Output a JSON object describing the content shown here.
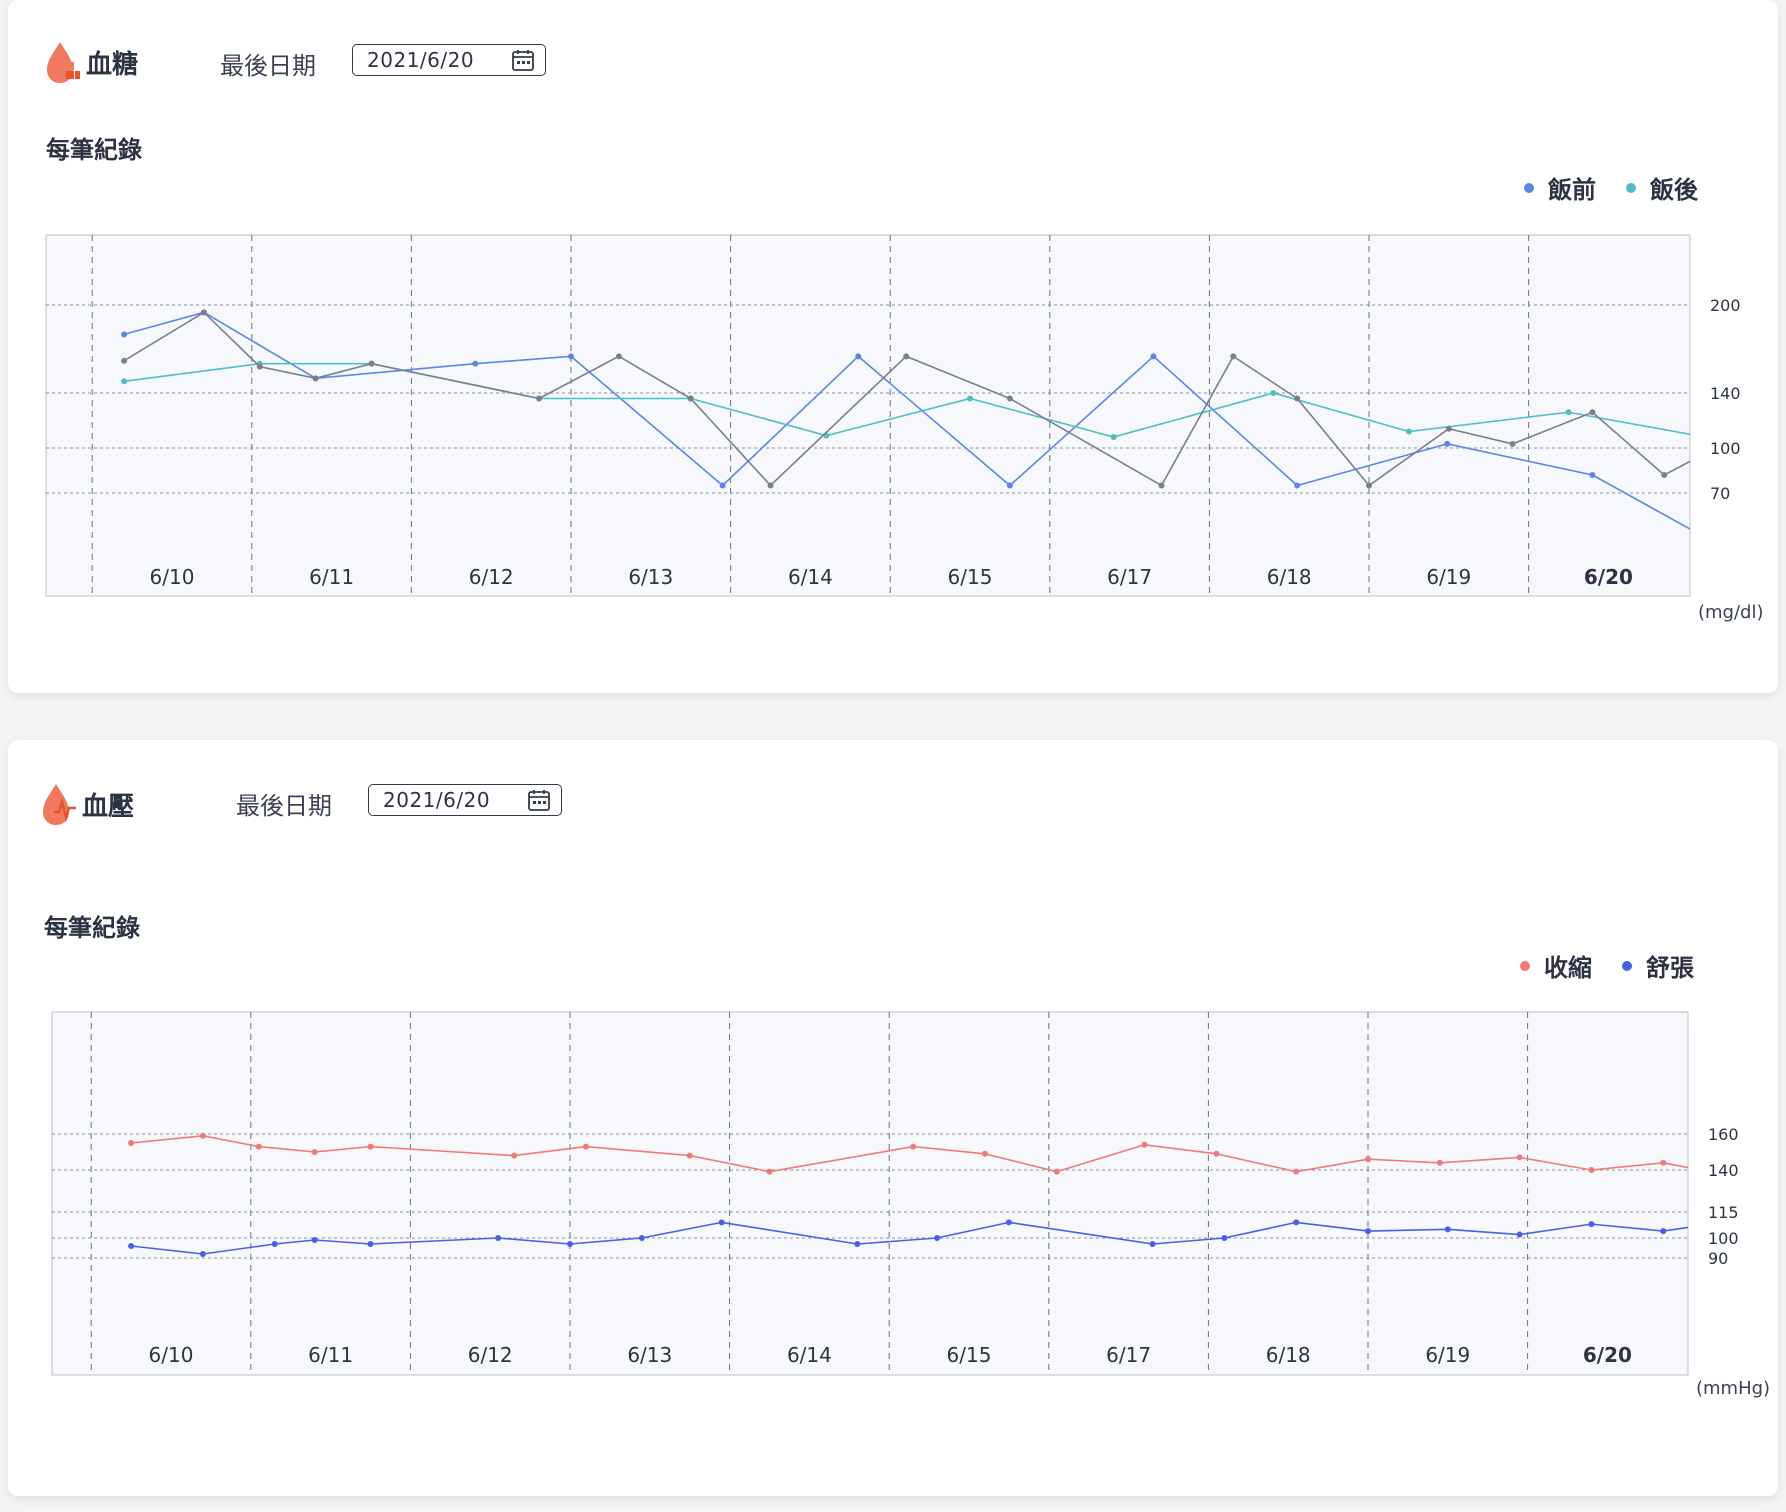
{
  "cards": {
    "blood_sugar": {
      "title": "血糖",
      "last_date_label": "最後日期",
      "last_date_value": "2021/6/20",
      "section_title": "每筆紀錄",
      "unit": "(mg/dl)",
      "legend": [
        {
          "label": "飯前",
          "color": "#5b86e5"
        },
        {
          "label": "飯後",
          "color": "#4fbfc6"
        }
      ],
      "icon": "drop-icon",
      "accent_color": "#f07a5f"
    },
    "blood_pressure": {
      "title": "血壓",
      "last_date_label": "最後日期",
      "last_date_value": "2021/6/20",
      "section_title": "每筆紀錄",
      "unit": "(mmHg)",
      "legend": [
        {
          "label": "收縮",
          "color": "#ef7a7a"
        },
        {
          "label": "舒張",
          "color": "#4a5fe6"
        }
      ],
      "icon": "drop-icon",
      "accent_color": "#f07a5f"
    }
  },
  "chart_data": [
    {
      "type": "line",
      "x": [
        "6/10",
        "6/11",
        "6/12",
        "6/13",
        "6/14",
        "6/15",
        "6/17",
        "6/18",
        "6/19",
        "6/20"
      ],
      "highlight_category": "6/20",
      "y_ticks": [
        200,
        140,
        100,
        70
      ],
      "ylabel": "(mg/dl)",
      "grid": true,
      "legend_position": "top-right",
      "series": [
        {
          "name": "飯前",
          "color": "#5b86e5",
          "x": [
            -0.3,
            0.2,
            0.9,
            1.9,
            2.5,
            3.45,
            4.3,
            5.25,
            6.15,
            7.05,
            7.99,
            8.9,
            9.8,
            10.3
          ],
          "y": [
            180,
            195,
            150,
            160,
            165,
            75,
            165,
            75,
            165,
            75,
            103,
            82,
            55,
            70
          ]
        },
        {
          "name": "飯後",
          "color": "#4fbfc6",
          "x": [
            -0.3,
            0.55,
            1.25,
            2.3,
            3.25,
            4.1,
            5.0,
            5.9,
            6.9,
            7.75,
            8.75,
            9.7,
            10.3
          ],
          "y": [
            148,
            160,
            160,
            136,
            136,
            109,
            136,
            108,
            140,
            112,
            126,
            106,
            70
          ]
        },
        {
          "name": "",
          "color": "#7a7f8c",
          "x": [
            -0.3,
            0.2,
            0.55,
            0.9,
            1.25,
            2.3,
            2.8,
            3.25,
            3.75,
            4.6,
            5.25,
            6.2,
            6.65,
            7.05,
            7.5,
            8.0,
            8.4,
            8.9,
            9.35,
            9.8,
            10.3
          ],
          "y": [
            162,
            195,
            158,
            150,
            160,
            136,
            165,
            136,
            75,
            165,
            136,
            75,
            165,
            136,
            75,
            114,
            103,
            126,
            82,
            108,
            55
          ]
        }
      ]
    },
    {
      "type": "line",
      "x": [
        "6/10",
        "6/11",
        "6/12",
        "6/13",
        "6/14",
        "6/15",
        "6/17",
        "6/18",
        "6/19",
        "6/20"
      ],
      "highlight_category": "6/20",
      "y_ticks": [
        160,
        140,
        115,
        100,
        90
      ],
      "ylabel": "(mmHg)",
      "grid": true,
      "legend_position": "top-right",
      "series": [
        {
          "name": "收縮",
          "color": "#ef7a7a",
          "x": [
            -0.25,
            0.2,
            0.55,
            0.9,
            1.25,
            2.15,
            2.6,
            3.25,
            3.75,
            4.65,
            5.1,
            5.55,
            6.1,
            6.55,
            7.05,
            7.5,
            7.95,
            8.45,
            8.9,
            9.35,
            9.8,
            10.25
          ],
          "y": [
            155,
            159,
            153,
            150,
            153,
            148,
            153,
            148,
            139,
            153,
            149,
            139,
            154,
            149,
            139,
            146,
            144,
            147,
            140,
            144,
            136,
            139
          ]
        },
        {
          "name": "舒張",
          "color": "#4a5fe6",
          "x": [
            -0.25,
            0.2,
            0.65,
            0.9,
            1.25,
            2.05,
            2.5,
            2.95,
            3.45,
            4.3,
            4.8,
            5.25,
            6.15,
            6.6,
            7.05,
            7.5,
            8.0,
            8.45,
            8.9,
            9.35,
            9.8,
            10.25
          ],
          "y": [
            96,
            92,
            97,
            99,
            97,
            100,
            97,
            100,
            109,
            97,
            100,
            109,
            97,
            100,
            109,
            104,
            105,
            102,
            108,
            104,
            110,
            108
          ]
        }
      ]
    }
  ]
}
